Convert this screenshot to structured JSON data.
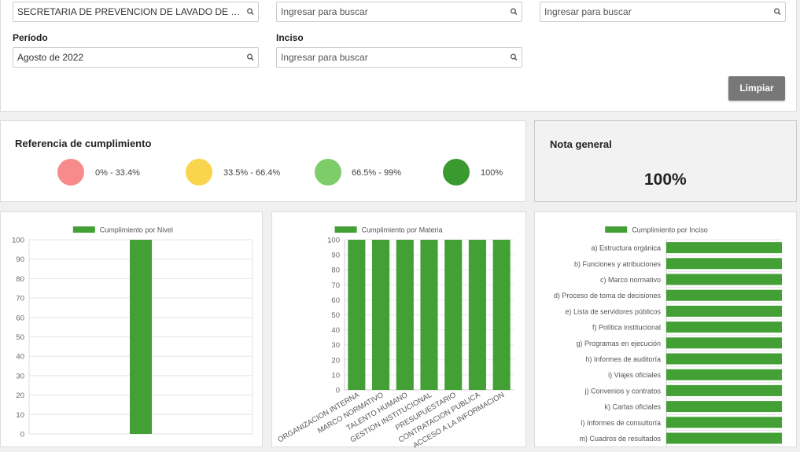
{
  "filters": {
    "entity_value": "SECRETARIA DE PREVENCION DE LAVADO DE DINERO O BIENES",
    "search2_placeholder": "Ingresar para buscar",
    "search3_placeholder": "Ingresar para buscar",
    "periodo_label": "Período",
    "periodo_value": "Agosto de 2022",
    "inciso_label": "Inciso",
    "inciso_placeholder": "Ingresar para buscar",
    "clear_label": "Limpiar"
  },
  "reference": {
    "title": "Referencia de cumplimiento",
    "items": [
      {
        "label": "0% - 33.4%",
        "color": "#f78a8a"
      },
      {
        "label": "33.5% - 66.4%",
        "color": "#f8d54c"
      },
      {
        "label": "66.5% - 99%",
        "color": "#7dcd6a"
      },
      {
        "label": "100%",
        "color": "#3a9a2f"
      }
    ]
  },
  "nota": {
    "title": "Nota general",
    "value": "100%"
  },
  "colors": {
    "bar": "#43a035",
    "grid": "#e6e6e6"
  },
  "chart_data": [
    {
      "type": "bar",
      "title": "",
      "series": [
        {
          "name": "Cumplimiento por Nivel",
          "values": [
            100
          ]
        }
      ],
      "categories": [
        ""
      ],
      "ylim": [
        0,
        100
      ],
      "yticks": [
        0,
        10,
        20,
        30,
        40,
        50,
        60,
        70,
        80,
        90,
        100
      ],
      "legend": "top",
      "grid": true
    },
    {
      "type": "bar",
      "title": "",
      "series": [
        {
          "name": "Cumplimiento por Materia",
          "values": [
            100,
            100,
            100,
            100,
            100,
            100,
            100
          ]
        }
      ],
      "categories": [
        "ORGANIZACION INTERNA",
        "MARCO NORMATIVO",
        "TALENTO HUMANO",
        "GESTION INSTITUCIONAL",
        "PRESUPUESTARIO",
        "CONTRATACION PUBLICA",
        "ACCESO A LA INFORMACION"
      ],
      "ylim": [
        0,
        100
      ],
      "yticks": [
        0,
        10,
        20,
        30,
        40,
        50,
        60,
        70,
        80,
        90,
        100
      ],
      "legend": "top",
      "grid": true
    },
    {
      "type": "bar",
      "orientation": "horizontal",
      "title": "",
      "series": [
        {
          "name": "Cumplimiento por Inciso",
          "values": [
            100,
            100,
            100,
            100,
            100,
            100,
            100,
            100,
            100,
            100,
            100,
            100,
            100
          ]
        }
      ],
      "categories": [
        "a) Estructura orgánica",
        "b) Funciones y atribuciones",
        "c) Marco normativo",
        "d) Proceso de toma de decisiones",
        "e) Lista de servidores públicos",
        "f) Política institucional",
        "g) Programas en ejecución",
        "h) Informes de auditoría",
        "i) Viajes oficiales",
        "j) Convenios y contratos",
        "k) Cartas oficiales",
        "l) Informes de consultoría",
        "m)  Cuadros de resultados"
      ],
      "xlim": [
        0,
        100
      ],
      "legend": "top",
      "grid": true
    }
  ]
}
